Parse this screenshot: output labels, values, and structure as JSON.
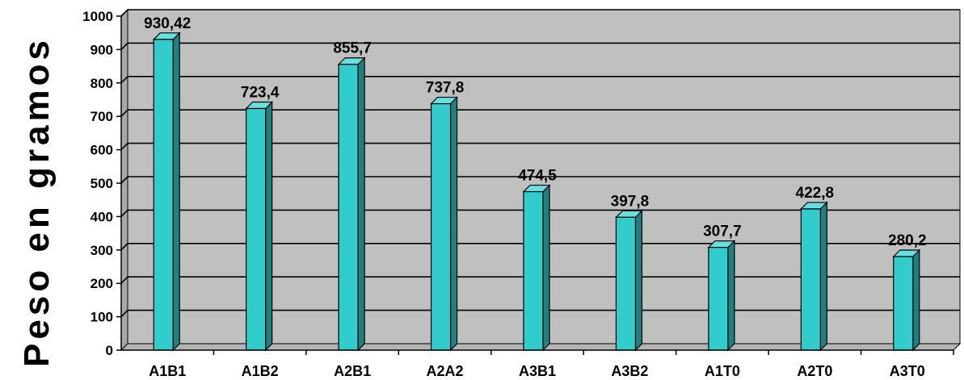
{
  "chart_data": {
    "type": "bar",
    "categories": [
      "A1B1",
      "A1B2",
      "A2B1",
      "A2A2",
      "A3B1",
      "A3B2",
      "A1T0",
      "A2T0",
      "A3T0"
    ],
    "values": [
      930.42,
      723.4,
      855.7,
      737.8,
      474.5,
      397.8,
      307.7,
      422.8,
      280.2
    ],
    "value_labels": [
      "930,42",
      "723,4",
      "855,7",
      "737,8",
      "474,5",
      "397,8",
      "307,7",
      "422,8",
      "280,2"
    ],
    "ylabel": "Peso en gramos",
    "ylim": [
      0,
      1000
    ],
    "yticks": [
      "0",
      "100",
      "200",
      "300",
      "400",
      "500",
      "600",
      "700",
      "800",
      "900",
      "1000"
    ],
    "grid": true,
    "colors": {
      "bar_front": "#33CCCC",
      "bar_side": "#1F8080",
      "bar_top": "#66E0E0",
      "plot_bg": "#C0C0C0",
      "plot_wall": "#A8A8A8"
    }
  }
}
